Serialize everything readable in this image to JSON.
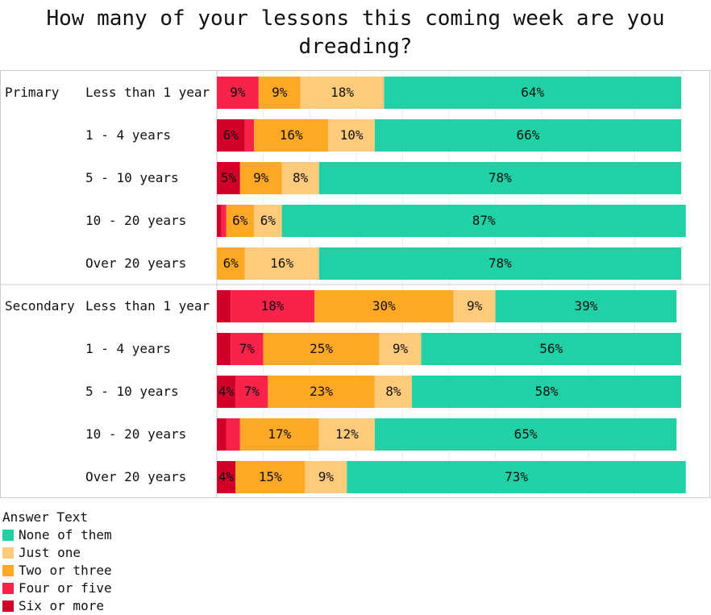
{
  "chart_data": {
    "type": "bar",
    "orientation": "horizontal",
    "stacked": true,
    "title": "How many of your lessons this coming week are you dreading?",
    "title_lines": [
      "How many of your lessons this coming week are you",
      "dreading?"
    ],
    "xlabel": "",
    "ylabel": "",
    "xlim": [
      0,
      100
    ],
    "grid": true,
    "unit": "%",
    "legend_title": "Answer Text",
    "legend_placement": "bottom-left",
    "series_order": [
      "Six or more",
      "Four or five",
      "Two or three",
      "Just one",
      "None of them"
    ],
    "legend": [
      "None of them",
      "Just one",
      "Two or three",
      "Four or five",
      "Six or more"
    ],
    "colors": {
      "None of them": "#1fd1a5",
      "Just one": "#fecb7d",
      "Two or three": "#fea826",
      "Four or five": "#f8224a",
      "Six or more": "#d0002a"
    },
    "groups": [
      {
        "name": "Primary",
        "rows": [
          {
            "category": "Less than 1 year",
            "values": [
              0,
              9,
              9,
              18,
              64
            ]
          },
          {
            "category": "1 - 4 years",
            "values": [
              6,
              2,
              16,
              10,
              66
            ]
          },
          {
            "category": "5 - 10 years",
            "values": [
              5,
              0,
              9,
              8,
              78
            ]
          },
          {
            "category": "10 - 20 years",
            "values": [
              1,
              1,
              6,
              6,
              87
            ]
          },
          {
            "category": "Over 20 years",
            "values": [
              0,
              0,
              6,
              16,
              78
            ]
          }
        ]
      },
      {
        "name": "Secondary",
        "rows": [
          {
            "category": "Less than 1 year",
            "values": [
              3,
              18,
              30,
              9,
              39
            ]
          },
          {
            "category": "1 - 4 years",
            "values": [
              3,
              7,
              25,
              9,
              56
            ]
          },
          {
            "category": "5 - 10 years",
            "values": [
              4,
              7,
              23,
              8,
              58
            ]
          },
          {
            "category": "10 - 20 years",
            "values": [
              2,
              3,
              17,
              12,
              65
            ]
          },
          {
            "category": "Over 20 years",
            "values": [
              4,
              0,
              15,
              9,
              73
            ]
          }
        ]
      }
    ]
  }
}
